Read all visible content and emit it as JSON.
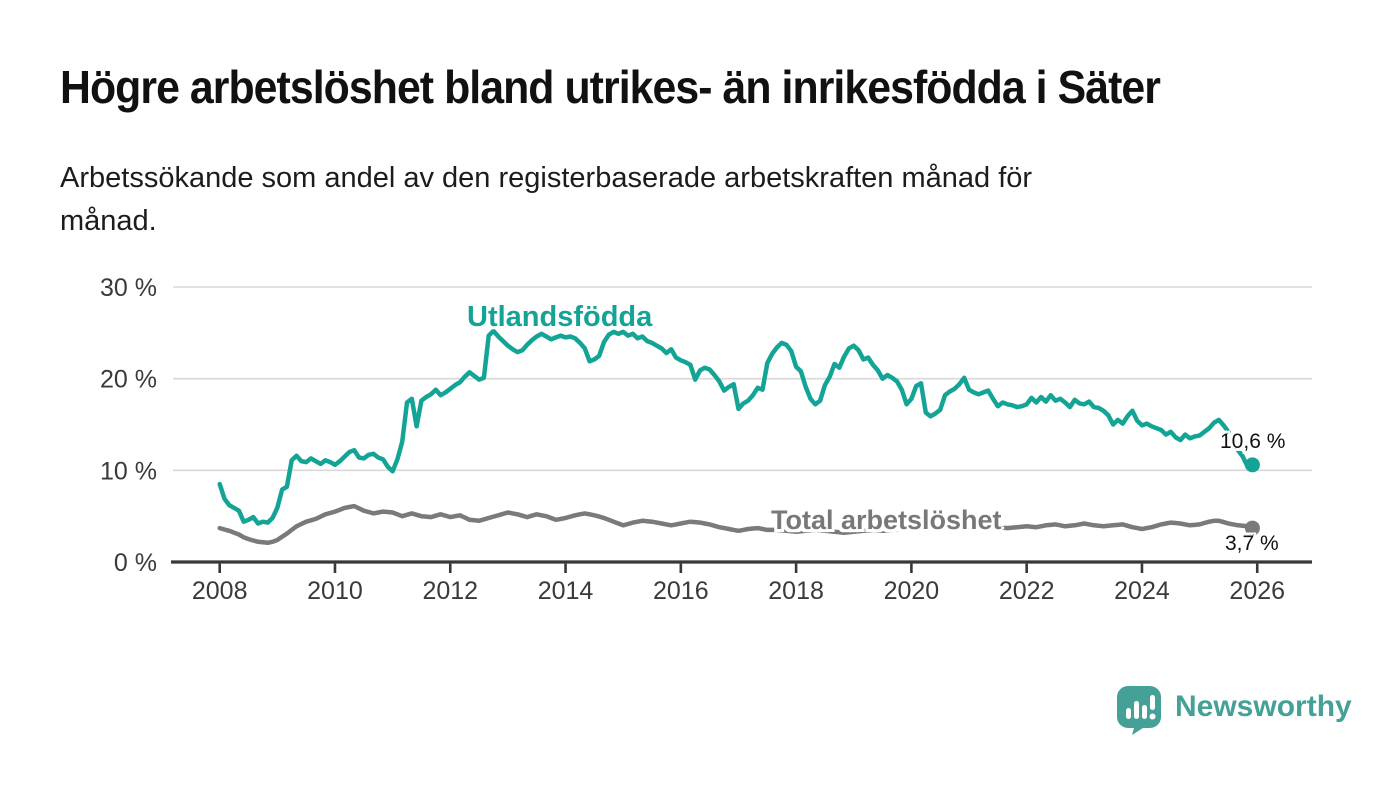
{
  "header": {
    "title": "Högre arbetslöshet bland utrikes- än inrikesfödda i Säter",
    "subtitle_line1": "Arbetssökande som andel av den registerbaserade arbetskraften månad för",
    "subtitle_line2": "månad."
  },
  "branding": {
    "logo_text": "Newsworthy",
    "logo_icon": "speech-bubble-bar-chart-icon",
    "brand_color": "#45a198"
  },
  "colors": {
    "foreign_born_line": "#14a496",
    "total_line": "#7a7a7a",
    "axis": "#383838",
    "tick_text": "#3a3a3a",
    "grid": "#d9d9d9",
    "title_text": "#111111"
  },
  "chart_data": {
    "type": "line",
    "title": "Högre arbetslöshet bland utrikes- än inrikesfödda i Säter",
    "subtitle": "Arbetssökande som andel av den registerbaserade arbetskraften månad för månad.",
    "xlabel": "",
    "ylabel": "",
    "x_unit": "year, monthly data points",
    "y_unit": "percent of registered labour force",
    "xlim": [
      2007.19,
      2026.95
    ],
    "ylim": [
      0,
      30
    ],
    "grid": "horizontal-only",
    "legend_position": "inline-labels-on-lines",
    "x_tick_values": [
      2008,
      2010,
      2012,
      2014,
      2016,
      2018,
      2020,
      2022,
      2024,
      2026
    ],
    "x_tick_labels": [
      "2008",
      "2010",
      "2012",
      "2014",
      "2016",
      "2018",
      "2020",
      "2022",
      "2024",
      "2026"
    ],
    "y_tick_values": [
      0,
      10,
      20,
      30
    ],
    "y_tick_labels": [
      "0 %",
      "10 %",
      "20 %",
      "30 %"
    ],
    "series": [
      {
        "name": "Utlandsfödda",
        "color": "#14a496",
        "start_year": 2008,
        "points_per_year": 12,
        "end_value": 10.6,
        "end_label": "10,6 %",
        "values": [
          8.5,
          6.9,
          6.2,
          5.9,
          5.6,
          4.4,
          4.6,
          4.9,
          4.2,
          4.4,
          4.3,
          4.8,
          5.9,
          7.9,
          8.2,
          11.1,
          11.6,
          11.0,
          10.9,
          11.3,
          11.0,
          10.7,
          11.1,
          10.9,
          10.6,
          11.0,
          11.5,
          12.0,
          12.2,
          11.4,
          11.3,
          11.7,
          11.8,
          11.4,
          11.2,
          10.4,
          9.9,
          11.2,
          13.1,
          17.4,
          17.8,
          14.8,
          17.6,
          18.0,
          18.3,
          18.8,
          18.2,
          18.5,
          18.9,
          19.3,
          19.6,
          20.2,
          20.7,
          20.3,
          19.9,
          20.1,
          24.7,
          25.2,
          24.6,
          24.1,
          23.6,
          23.2,
          22.9,
          23.1,
          23.7,
          24.2,
          24.6,
          24.9,
          24.6,
          24.3,
          24.5,
          24.7,
          24.5,
          24.6,
          24.4,
          23.9,
          23.3,
          21.9,
          22.1,
          22.5,
          24.0,
          24.8,
          25.1,
          24.9,
          25.1,
          24.7,
          24.9,
          24.4,
          24.6,
          24.1,
          23.9,
          23.6,
          23.3,
          22.8,
          23.2,
          22.3,
          22.0,
          21.8,
          21.5,
          19.9,
          20.9,
          21.2,
          21.0,
          20.4,
          19.7,
          18.7,
          19.1,
          19.4,
          16.7,
          17.3,
          17.6,
          18.2,
          19.0,
          18.8,
          21.7,
          22.7,
          23.4,
          23.9,
          23.7,
          23.0,
          21.3,
          20.8,
          19.1,
          17.8,
          17.2,
          17.6,
          19.3,
          20.2,
          21.6,
          21.2,
          22.4,
          23.3,
          23.6,
          23.1,
          22.1,
          22.3,
          21.5,
          20.9,
          20.0,
          20.4,
          20.1,
          19.7,
          18.8,
          17.2,
          17.8,
          19.2,
          19.5,
          16.3,
          15.9,
          16.2,
          16.6,
          18.2,
          18.6,
          18.9,
          19.4,
          20.1,
          18.8,
          18.5,
          18.3,
          18.5,
          18.7,
          17.8,
          17.0,
          17.4,
          17.2,
          17.1,
          16.9,
          17.0,
          17.2,
          17.9,
          17.4,
          18.0,
          17.5,
          18.2,
          17.6,
          17.8,
          17.4,
          16.9,
          17.7,
          17.3,
          17.2,
          17.5,
          16.9,
          16.8,
          16.5,
          16.0,
          15.0,
          15.5,
          15.1,
          15.9,
          16.5,
          15.4,
          14.9,
          15.1,
          14.8,
          14.6,
          14.4,
          13.9,
          14.2,
          13.6,
          13.3,
          13.9,
          13.5,
          13.7,
          13.8,
          14.2,
          14.6,
          15.2,
          15.5,
          14.9,
          14.2,
          13.3,
          12.2,
          11.5,
          10.4,
          10.6
        ]
      },
      {
        "name": "Total arbetslöshet",
        "color": "#7a7a7a",
        "start_year": 2008,
        "points_per_year": 12,
        "end_value": 3.7,
        "end_label": "3,7 %",
        "values": [
          3.7,
          3.55,
          3.4,
          3.2,
          3.0,
          2.7,
          2.5,
          2.35,
          2.2,
          2.15,
          2.1,
          2.2,
          2.4,
          2.75,
          3.1,
          3.5,
          3.9,
          4.15,
          4.4,
          4.55,
          4.7,
          4.95,
          5.2,
          5.35,
          5.5,
          5.7,
          5.9,
          6.0,
          6.1,
          5.85,
          5.6,
          5.45,
          5.3,
          5.4,
          5.5,
          5.45,
          5.4,
          5.2,
          5.0,
          5.15,
          5.3,
          5.15,
          5.0,
          4.95,
          4.9,
          5.05,
          5.2,
          5.05,
          4.9,
          5.0,
          5.1,
          4.85,
          4.6,
          4.55,
          4.5,
          4.65,
          4.8,
          4.95,
          5.1,
          5.25,
          5.4,
          5.3,
          5.2,
          5.05,
          4.9,
          5.05,
          5.2,
          5.1,
          5.0,
          4.8,
          4.6,
          4.7,
          4.8,
          4.95,
          5.1,
          5.2,
          5.3,
          5.2,
          5.1,
          4.95,
          4.8,
          4.6,
          4.4,
          4.2,
          4.0,
          4.15,
          4.3,
          4.4,
          4.5,
          4.45,
          4.4,
          4.3,
          4.2,
          4.1,
          4.0,
          4.1,
          4.2,
          4.3,
          4.4,
          4.35,
          4.3,
          4.2,
          4.1,
          3.95,
          3.8,
          3.7,
          3.6,
          3.5,
          3.4,
          3.5,
          3.6,
          3.65,
          3.7,
          3.6,
          3.5,
          3.5,
          3.5,
          3.45,
          3.4,
          3.35,
          3.3,
          3.35,
          3.4,
          3.45,
          3.5,
          3.45,
          3.4,
          3.35,
          3.3,
          3.25,
          3.2,
          3.25,
          3.3,
          3.35,
          3.4,
          3.45,
          3.5,
          3.45,
          3.4,
          3.45,
          3.5,
          3.55,
          3.6,
          3.65,
          3.7,
          3.85,
          4.0,
          4.15,
          4.3,
          4.35,
          4.4,
          4.35,
          4.3,
          4.25,
          4.2,
          4.15,
          4.1,
          4.05,
          4.0,
          3.95,
          3.9,
          3.85,
          3.8,
          3.75,
          3.7,
          3.75,
          3.8,
          3.85,
          3.9,
          3.85,
          3.8,
          3.9,
          4.0,
          4.05,
          4.1,
          4.0,
          3.9,
          3.95,
          4.0,
          4.1,
          4.2,
          4.1,
          4.0,
          3.95,
          3.9,
          3.95,
          4.0,
          4.05,
          4.1,
          3.95,
          3.8,
          3.7,
          3.6,
          3.7,
          3.8,
          3.95,
          4.1,
          4.2,
          4.3,
          4.25,
          4.2,
          4.1,
          4.0,
          4.05,
          4.1,
          4.25,
          4.4,
          4.5,
          4.5,
          4.35,
          4.2,
          4.1,
          4.0,
          3.95,
          3.9,
          3.7
        ]
      }
    ]
  }
}
